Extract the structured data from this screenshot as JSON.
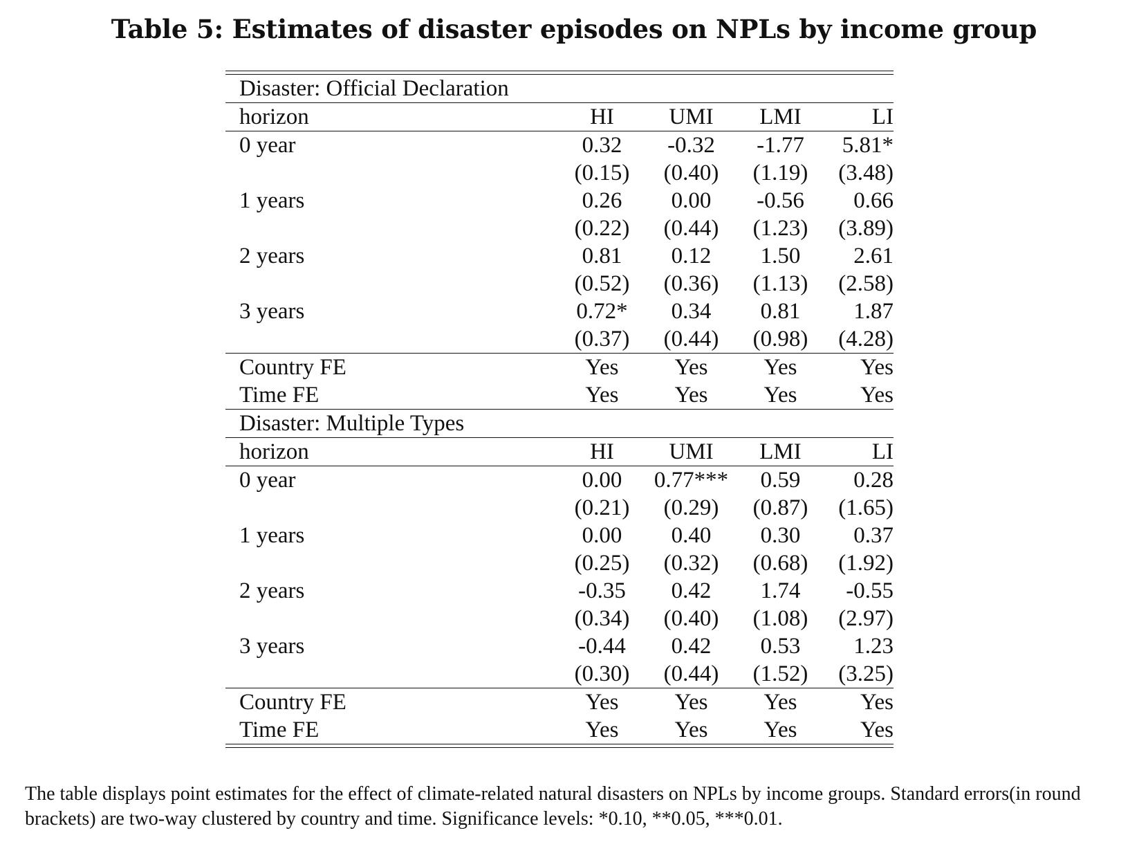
{
  "title": "Table 5: Estimates of disaster episodes on NPLs by income group",
  "columns": [
    "HI",
    "UMI",
    "LMI",
    "LI"
  ],
  "row_header": "horizon",
  "panels": [
    {
      "heading": "Disaster: Official Declaration",
      "rows": [
        {
          "label": "0 year",
          "est": [
            "0.32",
            "-0.32",
            "-1.77",
            "5.81*"
          ],
          "se": [
            "(0.15)",
            "(0.40)",
            "(1.19)",
            "(3.48)"
          ]
        },
        {
          "label": "1 years",
          "est": [
            "0.26",
            "0.00",
            "-0.56",
            "0.66"
          ],
          "se": [
            "(0.22)",
            "(0.44)",
            "(1.23)",
            "(3.89)"
          ]
        },
        {
          "label": "2 years",
          "est": [
            "0.81",
            "0.12",
            "1.50",
            "2.61"
          ],
          "se": [
            "(0.52)",
            "(0.36)",
            "(1.13)",
            "(2.58)"
          ]
        },
        {
          "label": "3 years",
          "est": [
            "0.72*",
            "0.34",
            "0.81",
            "1.87"
          ],
          "se": [
            "(0.37)",
            "(0.44)",
            "(0.98)",
            "(4.28)"
          ]
        }
      ],
      "fe": [
        {
          "label": "Country FE",
          "values": [
            "Yes",
            "Yes",
            "Yes",
            "Yes"
          ]
        },
        {
          "label": "Time FE",
          "values": [
            "Yes",
            "Yes",
            "Yes",
            "Yes"
          ]
        }
      ]
    },
    {
      "heading": "Disaster: Multiple Types",
      "rows": [
        {
          "label": "0 year",
          "est": [
            "0.00",
            "0.77***",
            "0.59",
            "0.28"
          ],
          "se": [
            "(0.21)",
            "(0.29)",
            "(0.87)",
            "(1.65)"
          ]
        },
        {
          "label": "1 years",
          "est": [
            "0.00",
            "0.40",
            "0.30",
            "0.37"
          ],
          "se": [
            "(0.25)",
            "(0.32)",
            "(0.68)",
            "(1.92)"
          ]
        },
        {
          "label": "2 years",
          "est": [
            "-0.35",
            "0.42",
            "1.74",
            "-0.55"
          ],
          "se": [
            "(0.34)",
            "(0.40)",
            "(1.08)",
            "(2.97)"
          ]
        },
        {
          "label": "3 years",
          "est": [
            "-0.44",
            "0.42",
            "0.53",
            "1.23"
          ],
          "se": [
            "(0.30)",
            "(0.44)",
            "(1.52)",
            "(3.25)"
          ]
        }
      ],
      "fe": [
        {
          "label": "Country FE",
          "values": [
            "Yes",
            "Yes",
            "Yes",
            "Yes"
          ]
        },
        {
          "label": "Time FE",
          "values": [
            "Yes",
            "Yes",
            "Yes",
            "Yes"
          ]
        }
      ]
    }
  ],
  "note": "The table displays point estimates for the effect of climate-related natural disasters on NPLs by income groups. Standard errors(in round brackets) are two-way clustered by country and time. Significance levels: *0.10, **0.05, ***0.01."
}
